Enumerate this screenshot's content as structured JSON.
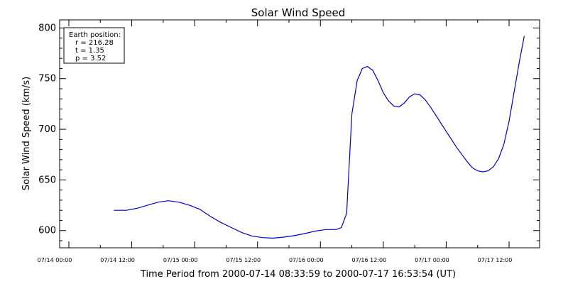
{
  "chart_data": {
    "type": "line",
    "title": "Solar Wind Speed",
    "xlabel": "Time Period from 2000-07-14 08:33:59 to 2000-07-17 16:53:54 (UT)",
    "ylabel": "Solar Wind Speed (km/s)",
    "x_unit": "hours since 07/14 00:00",
    "xlim": [
      0,
      84
    ],
    "ylim": [
      583,
      808
    ],
    "x_ticks": [
      {
        "value": 0,
        "label": "07/14 00:00"
      },
      {
        "value": 12,
        "label": "07/14 12:00"
      },
      {
        "value": 24,
        "label": "07/15 00:00"
      },
      {
        "value": 36,
        "label": "07/15 12:00"
      },
      {
        "value": 48,
        "label": "07/16 00:00"
      },
      {
        "value": 60,
        "label": "07/16 12:00"
      },
      {
        "value": 72,
        "label": "07/17 00:00"
      },
      {
        "value": 84,
        "label": "07/17 12:00"
      }
    ],
    "y_ticks": [
      {
        "value": 600,
        "label": "600"
      },
      {
        "value": 650,
        "label": "650"
      },
      {
        "value": 700,
        "label": "700"
      },
      {
        "value": 750,
        "label": "750"
      },
      {
        "value": 800,
        "label": "800"
      }
    ],
    "series": [
      {
        "color": "#0000cc",
        "x": [
          8.57,
          9.5,
          11.0,
          13.0,
          15.0,
          17.0,
          19.0,
          21.0,
          23.0,
          25.0,
          27.0,
          29.0,
          31.0,
          33.0,
          35.0,
          37.0,
          39.0,
          41.0,
          43.0,
          45.0,
          47.0,
          49.0,
          51.0,
          52.0,
          53.0,
          54.0,
          55.0,
          56.0,
          57.0,
          58.0,
          59.0,
          60.0,
          61.0,
          62.0,
          63.0,
          64.0,
          64.5,
          65.0,
          66.0,
          67.0,
          68.0,
          69.0,
          70.0,
          71.0,
          72.0,
          73.0,
          74.0,
          75.0,
          76.0,
          77.0,
          78.0,
          79.0,
          80.0,
          81.0,
          82.0,
          83.0,
          84.0,
          85.0,
          86.0,
          86.9
        ],
        "y": [
          620,
          620,
          620,
          622,
          625,
          628,
          629.5,
          628,
          625,
          621,
          614,
          608,
          603,
          598,
          594.5,
          593,
          592.5,
          593.5,
          595,
          597,
          599.5,
          601,
          601,
          603,
          617,
          715,
          748,
          760,
          762,
          758,
          748,
          736,
          728,
          723,
          722,
          726,
          729,
          732,
          735,
          734,
          729,
          722,
          714,
          706,
          698,
          690,
          682,
          675,
          668,
          662,
          659,
          658,
          659,
          663,
          671,
          685,
          708,
          738,
          768,
          792
        ]
      }
    ]
  },
  "info_box": {
    "heading": "Earth position:",
    "lines": [
      "r = 216.28",
      "t = 1.35",
      "p = 3.52"
    ]
  }
}
